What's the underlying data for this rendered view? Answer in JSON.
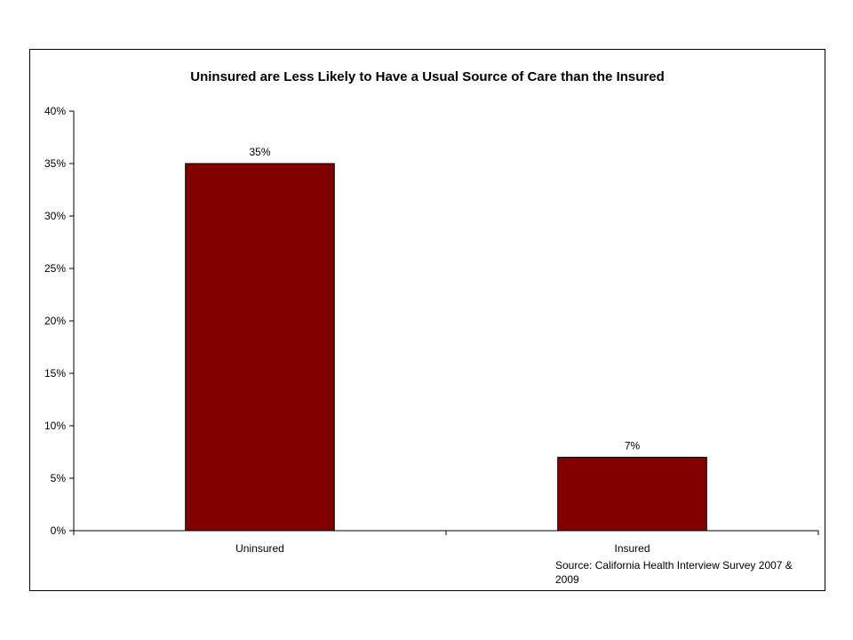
{
  "chart_data": {
    "type": "bar",
    "title": "Uninsured are Less Likely to Have a Usual Source of Care than the Insured",
    "categories": [
      "Uninsured",
      "Insured"
    ],
    "values": [
      35,
      7
    ],
    "data_labels": [
      "35%",
      "7%"
    ],
    "ylim": [
      0,
      40
    ],
    "yticks": [
      0,
      5,
      10,
      15,
      20,
      25,
      30,
      35,
      40
    ],
    "ytick_labels": [
      "0%",
      "5%",
      "10%",
      "15%",
      "20%",
      "25%",
      "30%",
      "35%",
      "40%"
    ],
    "xlabel": "",
    "ylabel": "",
    "grid": false,
    "bar_color": "#800000",
    "source_lines": [
      "Source: California Health Interview Survey 2007 &",
      "2009"
    ]
  }
}
